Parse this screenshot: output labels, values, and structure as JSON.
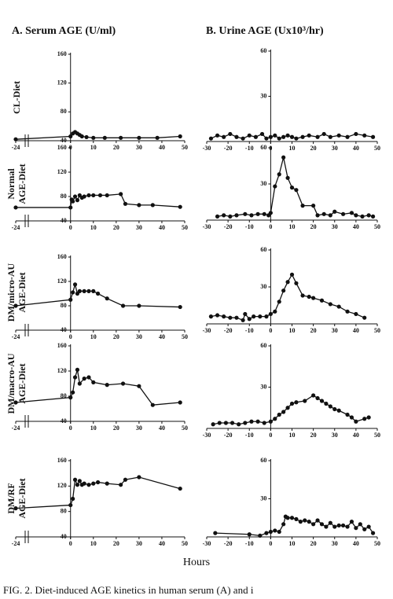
{
  "column_titles": [
    "A. Serum AGE  (U/ml)",
    "B. Urine AGE  (Ux10³/hr)"
  ],
  "row_labels": [
    [
      "CL-Diet"
    ],
    [
      "Normal",
      "AGE-Diet"
    ],
    [
      "DM/micro-AU",
      "AGE-Diet"
    ],
    [
      "DM/macro-AU",
      "AGE-Diet"
    ],
    [
      "DM/RF",
      "AGE-Diet"
    ]
  ],
  "xlabel": "Hours",
  "caption": "FIG. 2.   Diet-induced AGE kinetics in human serum (A) and i",
  "chart_data": [
    {
      "type": "line",
      "color": "#111111",
      "xlim": [
        -24,
        50
      ],
      "ylim": [
        40,
        160
      ],
      "xticks": [
        -24,
        0,
        10,
        20,
        30,
        40,
        50
      ],
      "yticks": [
        40,
        80,
        120,
        160
      ],
      "x": [
        -24,
        0,
        1,
        2,
        3,
        4,
        5,
        7,
        10,
        15,
        22,
        30,
        38,
        48
      ],
      "values": [
        42,
        46,
        50,
        52,
        50,
        48,
        46,
        45,
        44,
        44,
        44,
        44,
        44,
        46
      ]
    },
    {
      "type": "line",
      "color": "#111111",
      "xlim": [
        -24,
        50
      ],
      "ylim": [
        40,
        160
      ],
      "xticks": [
        -24,
        0,
        10,
        20,
        30,
        40,
        50
      ],
      "yticks": [
        40,
        80,
        120,
        160
      ],
      "x": [
        -24,
        0,
        0.5,
        1,
        2,
        3,
        4,
        5,
        6,
        8,
        10,
        13,
        16,
        22,
        24,
        30,
        36,
        48
      ],
      "values": [
        62,
        62,
        75,
        72,
        80,
        74,
        82,
        78,
        80,
        82,
        82,
        82,
        82,
        84,
        68,
        66,
        66,
        63
      ]
    },
    {
      "type": "line",
      "color": "#111111",
      "xlim": [
        -24,
        50
      ],
      "ylim": [
        40,
        160
      ],
      "xticks": [
        -24,
        0,
        10,
        20,
        30,
        40,
        50
      ],
      "yticks": [
        40,
        80,
        120,
        160
      ],
      "x": [
        -24,
        0,
        1,
        2,
        3,
        4,
        6,
        8,
        10,
        12,
        16,
        23,
        30,
        48
      ],
      "values": [
        80,
        90,
        102,
        115,
        100,
        104,
        104,
        104,
        104,
        100,
        92,
        80,
        80,
        78
      ]
    },
    {
      "type": "line",
      "color": "#111111",
      "xlim": [
        -24,
        50
      ],
      "ylim": [
        40,
        160
      ],
      "xticks": [
        -24,
        0,
        10,
        20,
        30,
        40,
        50
      ],
      "yticks": [
        40,
        80,
        120,
        160
      ],
      "x": [
        -24,
        0,
        1,
        2,
        3,
        4,
        6,
        8,
        10,
        16,
        23,
        30,
        36,
        48
      ],
      "values": [
        70,
        78,
        86,
        110,
        122,
        100,
        108,
        110,
        102,
        98,
        100,
        96,
        66,
        70
      ]
    },
    {
      "type": "line",
      "color": "#111111",
      "xlim": [
        -24,
        50
      ],
      "ylim": [
        40,
        160
      ],
      "xticks": [
        -24,
        0,
        10,
        20,
        30,
        40,
        50
      ],
      "yticks": [
        40,
        80,
        120,
        160
      ],
      "x": [
        -24,
        0,
        1,
        2,
        3,
        4,
        5,
        6,
        8,
        10,
        12,
        16,
        22,
        24,
        30,
        48
      ],
      "values": [
        85,
        90,
        100,
        130,
        122,
        128,
        122,
        124,
        122,
        124,
        126,
        124,
        122,
        130,
        134,
        116
      ]
    },
    {
      "type": "line",
      "color": "#111111",
      "xlim": [
        -30,
        50
      ],
      "ylim": [
        0,
        60
      ],
      "xticks": [
        -30,
        -20,
        -10,
        0,
        10,
        20,
        30,
        40,
        50
      ],
      "yticks": [
        30,
        60
      ],
      "x": [
        -28,
        -25,
        -22,
        -19,
        -16,
        -13,
        -10,
        -7,
        -4,
        -2,
        0,
        2,
        4,
        6,
        8,
        10,
        12,
        15,
        18,
        22,
        25,
        28,
        32,
        36,
        40,
        44,
        48
      ],
      "values": [
        2,
        4,
        3,
        5,
        3,
        2,
        4,
        3,
        5,
        2,
        3,
        4,
        2,
        3,
        4,
        3,
        2,
        3,
        4,
        3,
        5,
        3,
        4,
        3,
        5,
        4,
        3
      ]
    },
    {
      "type": "line",
      "color": "#111111",
      "xlim": [
        -30,
        50
      ],
      "ylim": [
        0,
        60
      ],
      "xticks": [
        -30,
        -20,
        -10,
        0,
        10,
        20,
        30,
        40,
        50
      ],
      "yticks": [
        30,
        60
      ],
      "x": [
        -25,
        -22,
        -19,
        -16,
        -12,
        -9,
        -6,
        -3,
        -1,
        0,
        2,
        4,
        6,
        8,
        10,
        12,
        15,
        20,
        22,
        25,
        28,
        30,
        34,
        38,
        40,
        43,
        46,
        48
      ],
      "values": [
        3,
        4,
        3,
        4,
        5,
        4,
        5,
        5,
        4,
        6,
        28,
        38,
        52,
        35,
        27,
        25,
        12,
        12,
        4,
        5,
        4,
        7,
        5,
        6,
        4,
        3,
        4,
        3
      ]
    },
    {
      "type": "line",
      "color": "#111111",
      "xlim": [
        -30,
        50
      ],
      "ylim": [
        0,
        60
      ],
      "xticks": [
        -30,
        -20,
        -10,
        0,
        10,
        20,
        30,
        40,
        50
      ],
      "yticks": [
        30,
        60
      ],
      "x": [
        -28,
        -25,
        -22,
        -19,
        -16,
        -13,
        -12,
        -10,
        -8,
        -5,
        -2,
        0,
        2,
        4,
        6,
        8,
        10,
        12,
        15,
        18,
        20,
        24,
        28,
        32,
        36,
        40,
        44
      ],
      "values": [
        6,
        7,
        6,
        5,
        5,
        3,
        8,
        4,
        6,
        6,
        6,
        8,
        10,
        18,
        27,
        34,
        40,
        33,
        23,
        22,
        21,
        19,
        16,
        14,
        10,
        8,
        5
      ]
    },
    {
      "type": "line",
      "color": "#111111",
      "xlim": [
        -30,
        50
      ],
      "ylim": [
        0,
        60
      ],
      "xticks": [
        -30,
        -20,
        -10,
        0,
        10,
        20,
        30,
        40,
        50
      ],
      "yticks": [
        30,
        60
      ],
      "x": [
        -27,
        -24,
        -21,
        -18,
        -15,
        -12,
        -9,
        -6,
        -3,
        0,
        2,
        4,
        6,
        8,
        10,
        12,
        16,
        20,
        22,
        24,
        26,
        28,
        30,
        32,
        36,
        38,
        40,
        44,
        46
      ],
      "values": [
        3,
        4,
        4,
        4,
        3,
        4,
        5,
        5,
        4,
        5,
        7,
        10,
        12,
        15,
        18,
        19,
        20,
        24,
        22,
        20,
        18,
        16,
        14,
        13,
        10,
        8,
        5,
        7,
        8
      ]
    },
    {
      "type": "line",
      "color": "#111111",
      "xlim": [
        -30,
        50
      ],
      "ylim": [
        0,
        60
      ],
      "xticks": [
        -30,
        -20,
        -10,
        0,
        10,
        20,
        30,
        40,
        50
      ],
      "yticks": [
        30,
        60
      ],
      "x": [
        -26,
        -10,
        -5,
        -2,
        0,
        2,
        4,
        6,
        7,
        8,
        10,
        12,
        14,
        16,
        18,
        20,
        22,
        24,
        26,
        28,
        30,
        32,
        34,
        36,
        38,
        40,
        42,
        44,
        46,
        48
      ],
      "values": [
        3,
        2,
        1,
        3,
        4,
        5,
        4,
        10,
        16,
        15,
        15,
        14,
        12,
        13,
        12,
        10,
        13,
        10,
        8,
        11,
        8,
        9,
        9,
        8,
        12,
        7,
        10,
        6,
        8,
        3
      ]
    }
  ]
}
